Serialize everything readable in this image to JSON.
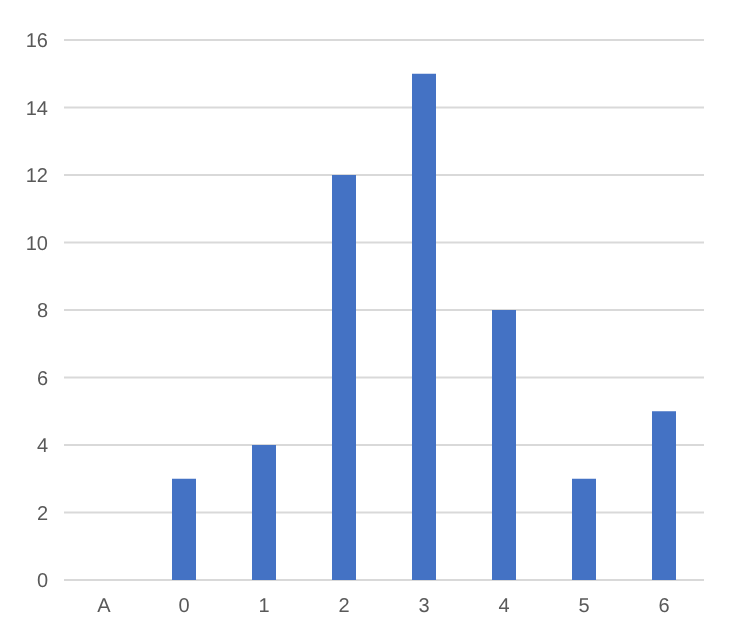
{
  "chart_data": {
    "type": "bar",
    "categories": [
      "A",
      "0",
      "1",
      "2",
      "3",
      "4",
      "5",
      "6"
    ],
    "series": [
      {
        "color": "#4472c4",
        "values": [
          null,
          3,
          4,
          12,
          15,
          8,
          3,
          5
        ]
      }
    ],
    "ylim": [
      0,
      16
    ],
    "yticks": [
      0,
      2,
      4,
      6,
      8,
      10,
      12,
      14,
      16
    ],
    "grid": "y"
  }
}
